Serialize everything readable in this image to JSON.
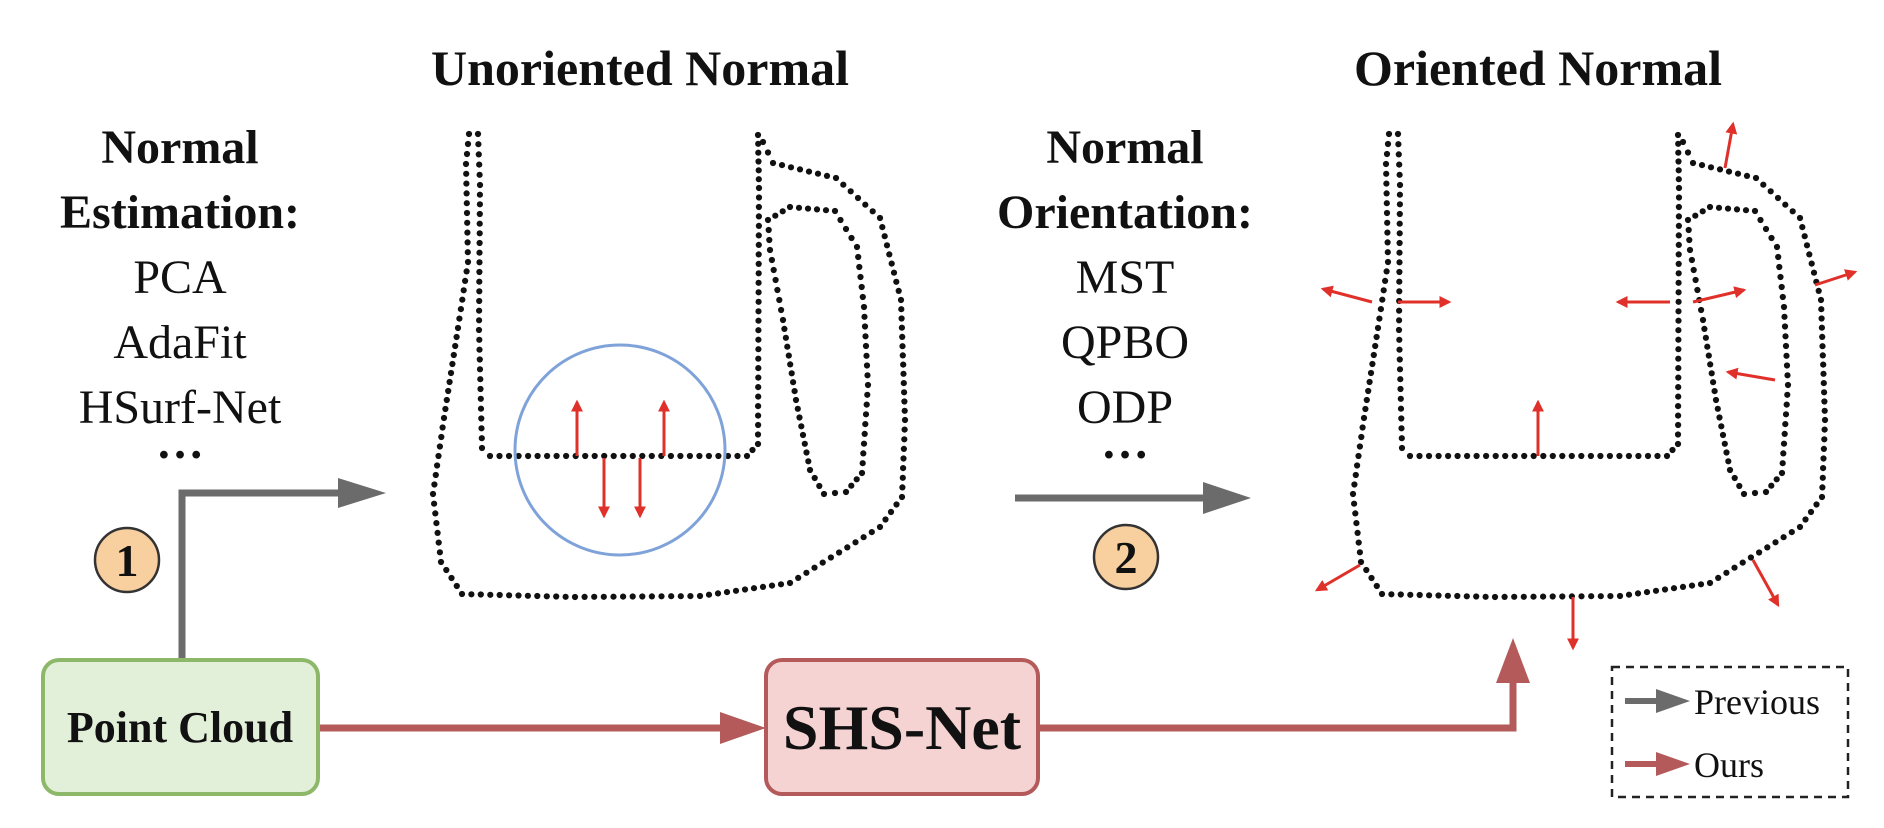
{
  "titles": {
    "unoriented": "Unoriented Normal",
    "oriented": "Oriented Normal"
  },
  "estimation": {
    "heading_line1": "Normal",
    "heading_line2": "Estimation:",
    "methods": [
      "PCA",
      "AdaFit",
      "HSurf-Net"
    ],
    "ellipsis": "…"
  },
  "orientation": {
    "heading_line1": "Normal",
    "heading_line2": "Orientation:",
    "methods": [
      "MST",
      "QPBO",
      "ODP"
    ],
    "ellipsis": "…"
  },
  "steps": {
    "step1": "1",
    "step2": "2"
  },
  "boxes": {
    "point_cloud": "Point Cloud",
    "shs_net": "SHS-Net"
  },
  "legend": {
    "previous": "Previous",
    "ours": "Ours"
  },
  "colors": {
    "previous_arrow": "#6b6b6b",
    "ours_arrow": "#b45a5a",
    "normal_arrow": "#e0302a",
    "step_badge_fill": "#f8cf9e",
    "point_cloud_fill": "#e2efd9",
    "point_cloud_border": "#8db86a",
    "shs_fill": "#f6d3d3",
    "shs_border": "#b45a5a",
    "highlight_circle": "#7fa3d9",
    "dots": "#111111"
  }
}
